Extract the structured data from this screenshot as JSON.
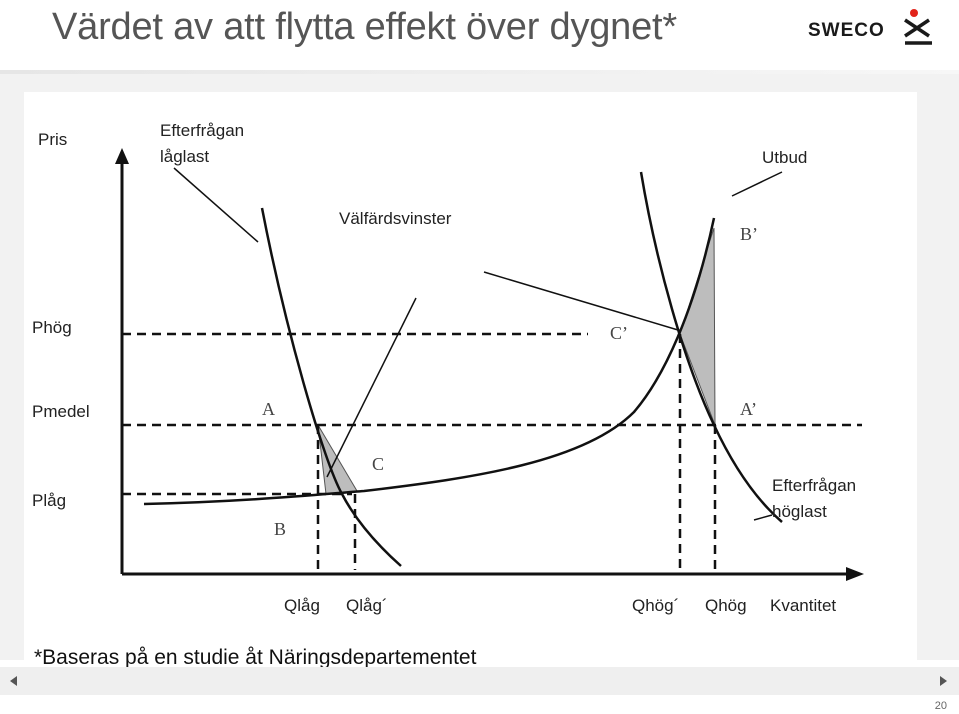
{
  "slide": {
    "title": "Värdet av att flytta effekt över dygnet*",
    "footnote": "*Baseras på en studie åt Näringsdepartementet",
    "page_number": "20"
  },
  "logo": {
    "text": "SWECO",
    "mark_icon": "sweco-figure-icon"
  },
  "diagram": {
    "y_axis_label": "Pris",
    "x_axis_label": "Kvantitet",
    "price_levels": [
      "Phög",
      "Pmedel",
      "Plåg"
    ],
    "quantity_ticks": [
      "Qlåg",
      "Qlåg´",
      "Qhög´",
      "Qhög"
    ],
    "curve_labels": {
      "demand_low_line1": "Efterfrågan",
      "demand_low_line2": "låglast",
      "supply": "Utbud",
      "welfare": "Välfärdsvinster",
      "demand_high_line1": "Efterfrågan",
      "demand_high_line2": "höglast"
    },
    "points": {
      "A": "A",
      "B": "B",
      "C": "C",
      "A_prime": "A’",
      "B_prime": "B’",
      "C_prime": "C’"
    }
  },
  "colors": {
    "title": "#555555",
    "shading": "#bdbdbd",
    "logo_red": "#e2231a"
  },
  "nav": {
    "prev_icon": "triangle-left-icon",
    "next_icon": "triangle-right-icon"
  }
}
